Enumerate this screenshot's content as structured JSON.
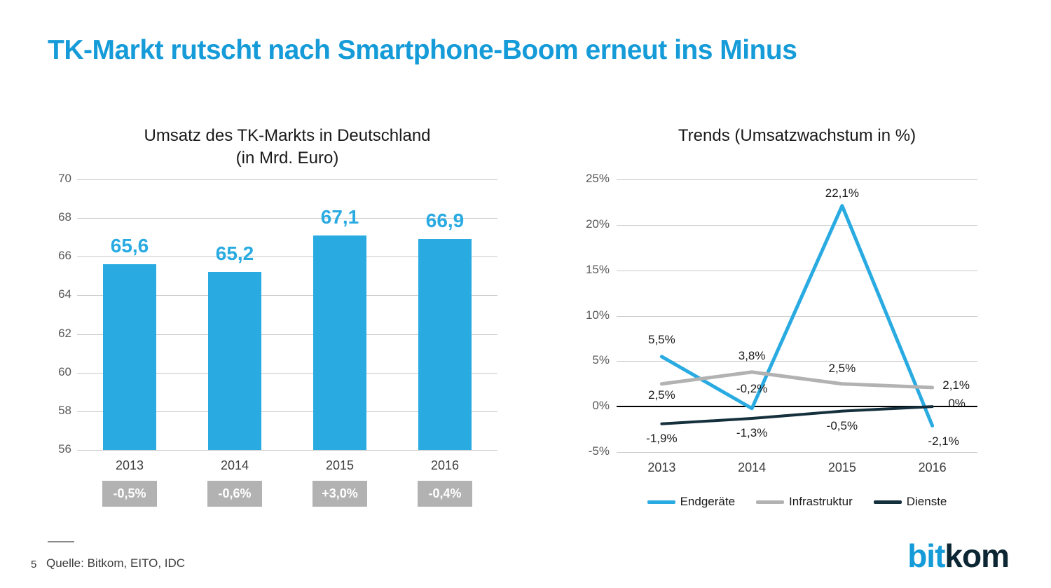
{
  "slide": {
    "title": "TK-Markt rutscht nach Smartphone-Boom erneut ins Minus",
    "page_number": "5",
    "source": "Quelle: Bitkom, EITO, IDC",
    "logo": {
      "part1": "bit",
      "part2": "kom"
    }
  },
  "colors": {
    "title_blue": "#149bd8",
    "bar_blue": "#29abe2",
    "infrastruktur_gray": "#b2b2b2",
    "dienste_dark": "#15303d",
    "badge_bg": "#b2b2b2",
    "badge_text": "#ffffff",
    "logo_bit": "#149bd8",
    "logo_kom": "#0c2633"
  },
  "chart_data": [
    {
      "type": "bar",
      "title": "Umsatz des TK-Markts in Deutschland",
      "subtitle": "(in Mrd. Euro)",
      "categories": [
        "2013",
        "2014",
        "2015",
        "2016"
      ],
      "values": [
        65.6,
        65.2,
        67.1,
        66.9
      ],
      "value_labels": [
        "65,6",
        "65,2",
        "67,1",
        "66,9"
      ],
      "growth_badges": [
        "-0,5%",
        "-0,6%",
        "+3,0%",
        "-0,4%"
      ],
      "bar_color": "#29abe2",
      "badge_bg": "#b2b2b2",
      "badge_text": "#ffffff",
      "xlabel": "",
      "ylabel": "",
      "ylim": [
        56,
        70
      ],
      "ytick_step": 2,
      "ytick_labels": [
        "70",
        "68",
        "66",
        "64",
        "62",
        "60",
        "58",
        "56"
      ],
      "grid": true
    },
    {
      "type": "line",
      "title": "Trends (Umsatzwachstum in %)",
      "categories": [
        "2013",
        "2014",
        "2015",
        "2016"
      ],
      "series": [
        {
          "name": "Endgeräte",
          "color": "#29abe2",
          "values": [
            5.5,
            -0.2,
            22.1,
            -2.1
          ],
          "labels": [
            "5,5%",
            "-0,2%",
            "22,1%",
            "-2,1%"
          ]
        },
        {
          "name": "Infrastruktur",
          "color": "#b2b2b2",
          "values": [
            2.5,
            3.8,
            2.5,
            2.1
          ],
          "labels": [
            "2,5%",
            "3,8%",
            "2,5%",
            "2,1%"
          ]
        },
        {
          "name": "Dienste",
          "color": "#15303d",
          "values": [
            -1.9,
            -1.3,
            -0.5,
            0
          ],
          "labels": [
            "-1,9%",
            "-1,3%",
            "-0,5%",
            "0%"
          ]
        }
      ],
      "xlabel": "",
      "ylabel": "",
      "ylim": [
        -5,
        25
      ],
      "ytick_step": 5,
      "ytick_labels": [
        "25%",
        "20%",
        "15%",
        "10%",
        "5%",
        "0%",
        "-5%"
      ],
      "zero_line": true,
      "grid": true,
      "legend_position": "bottom"
    }
  ]
}
